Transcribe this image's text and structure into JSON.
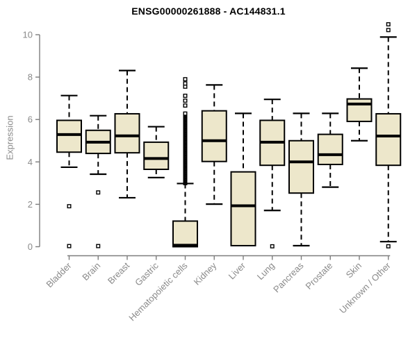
{
  "page": {
    "title": "ENSG00000261888 - AC144831.1"
  },
  "chart_data": {
    "type": "boxplot",
    "title": "ENSG00000261888 - AC144831.1",
    "xlabel": "",
    "ylabel": "Expression",
    "ylim": [
      0,
      10
    ],
    "yticks": [
      0,
      2,
      4,
      6,
      8,
      10
    ],
    "grid": false,
    "legend": null,
    "categories": [
      "Bladder",
      "Brain",
      "Breast",
      "Gastric",
      "Hematopoietic cells",
      "Kidney",
      "Liver",
      "Lung",
      "Pancreas",
      "Prostate",
      "Skin",
      "Unknown / Other"
    ],
    "series": [
      {
        "category": "Bladder",
        "whisker_low": 3.75,
        "q1": 4.46,
        "median": 5.29,
        "q3": 5.96,
        "whisker_high": 7.13,
        "outliers": [
          1.91,
          0.03
        ]
      },
      {
        "category": "Brain",
        "whisker_low": 3.42,
        "q1": 4.4,
        "median": 4.93,
        "q3": 5.49,
        "whisker_high": 6.18,
        "outliers": [
          2.56,
          0.03
        ]
      },
      {
        "category": "Breast",
        "whisker_low": 2.31,
        "q1": 4.43,
        "median": 5.23,
        "q3": 6.27,
        "whisker_high": 8.31,
        "outliers": []
      },
      {
        "category": "Gastric",
        "whisker_low": 3.26,
        "q1": 3.65,
        "median": 4.16,
        "q3": 4.93,
        "whisker_high": 5.66,
        "outliers": []
      },
      {
        "category": "Hematopoietic cells",
        "whisker_low": 0.0,
        "q1": 0.0,
        "median": 0.07,
        "q3": 1.21,
        "whisker_high": 2.98,
        "outliers": [
          6.66,
          6.89,
          7.12,
          7.55,
          7.7,
          7.9
        ],
        "outlier_band": {
          "from": 3.0,
          "to": 6.3,
          "step": 0.04
        }
      },
      {
        "category": "Kidney",
        "whisker_low": 2.01,
        "q1": 4.02,
        "median": 5.0,
        "q3": 6.41,
        "whisker_high": 7.63,
        "outliers": []
      },
      {
        "category": "Liver",
        "whisker_low": 0.02,
        "q1": 0.05,
        "median": 1.93,
        "q3": 3.53,
        "whisker_high": 6.29,
        "outliers": []
      },
      {
        "category": "Lung",
        "whisker_low": 1.71,
        "q1": 3.84,
        "median": 4.93,
        "q3": 5.96,
        "whisker_high": 6.95,
        "outliers": [
          0.02
        ]
      },
      {
        "category": "Pancreas",
        "whisker_low": 0.05,
        "q1": 2.53,
        "median": 4.0,
        "q3": 5.0,
        "whisker_high": 6.29,
        "outliers": []
      },
      {
        "category": "Prostate",
        "whisker_low": 2.81,
        "q1": 3.88,
        "median": 4.34,
        "q3": 5.3,
        "whisker_high": 6.29,
        "outliers": []
      },
      {
        "category": "Skin",
        "whisker_low": 5.0,
        "q1": 5.91,
        "median": 6.73,
        "q3": 6.97,
        "whisker_high": 8.42,
        "outliers": []
      },
      {
        "category": "Unknown / Other",
        "whisker_low": 0.24,
        "q1": 3.84,
        "median": 5.22,
        "q3": 6.27,
        "whisker_high": 9.89,
        "outliers": [
          10.49,
          10.22,
          0.02
        ]
      }
    ],
    "colors": {
      "box_fill": "#EDE7CB",
      "box_stroke": "#000000",
      "median": "#000000",
      "whisker": "#000000",
      "outlier_stroke": "#000000",
      "outlier_fill": "#ffffff",
      "axis": "#7D7D7D",
      "tick_label": "#8A8A8A",
      "title": "#000000"
    }
  }
}
